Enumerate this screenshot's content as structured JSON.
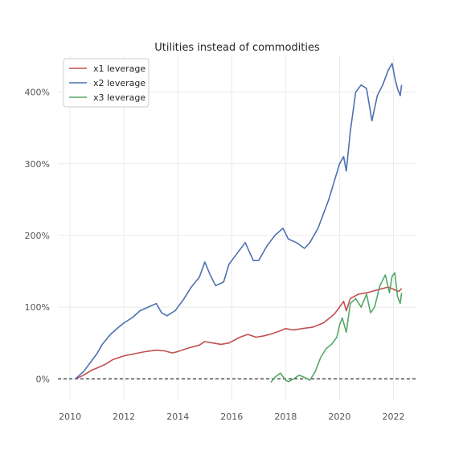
{
  "chart_data": {
    "type": "line",
    "title": "Utilities instead of commodities",
    "xlabel": "",
    "ylabel": "",
    "xlim": [
      2009.55,
      2022.85
    ],
    "ylim": [
      -30,
      450
    ],
    "x_ticks": [
      2010,
      2012,
      2014,
      2016,
      2018,
      2020,
      2022
    ],
    "x_tick_labels": [
      "2010",
      "2012",
      "2014",
      "2016",
      "2018",
      "2020",
      "2022"
    ],
    "y_ticks": [
      0,
      100,
      200,
      300,
      400
    ],
    "y_tick_labels": [
      "0%",
      "100%",
      "200%",
      "300%",
      "400%"
    ],
    "grid": true,
    "legend": "top-left",
    "reference_line": {
      "y": 0,
      "style": "dashed",
      "color": "#000000"
    },
    "series": [
      {
        "name": "x1 leverage",
        "color": "#c44e52",
        "x": [
          2010.2,
          2010.5,
          2010.8,
          2011.0,
          2011.3,
          2011.6,
          2012.0,
          2012.4,
          2012.8,
          2013.2,
          2013.5,
          2013.8,
          2014.0,
          2014.4,
          2014.8,
          2015.0,
          2015.3,
          2015.6,
          2015.9,
          2016.3,
          2016.6,
          2016.9,
          2017.2,
          2017.5,
          2017.8,
          2018.0,
          2018.3,
          2018.6,
          2019.0,
          2019.4,
          2019.8,
          2020.0,
          2020.15,
          2020.25,
          2020.4,
          2020.7,
          2021.0,
          2021.2,
          2021.5,
          2021.8,
          2022.0,
          2022.1,
          2022.2,
          2022.3
        ],
        "values": [
          0,
          5,
          12,
          15,
          20,
          27,
          32,
          35,
          38,
          40,
          39,
          36,
          38,
          43,
          47,
          52,
          50,
          48,
          50,
          58,
          62,
          58,
          60,
          63,
          67,
          70,
          68,
          70,
          72,
          78,
          90,
          100,
          108,
          95,
          112,
          118,
          120,
          122,
          125,
          128,
          125,
          123,
          122,
          126
        ]
      },
      {
        "name": "x2 leverage",
        "color": "#4c72b0",
        "x": [
          2010.2,
          2010.5,
          2010.8,
          2011.0,
          2011.2,
          2011.5,
          2011.8,
          2012.0,
          2012.3,
          2012.6,
          2012.9,
          2013.2,
          2013.4,
          2013.6,
          2013.9,
          2014.2,
          2014.5,
          2014.8,
          2015.0,
          2015.2,
          2015.4,
          2015.7,
          2015.9,
          2016.2,
          2016.5,
          2016.8,
          2017.0,
          2017.3,
          2017.6,
          2017.9,
          2018.1,
          2018.4,
          2018.7,
          2018.9,
          2019.2,
          2019.4,
          2019.6,
          2019.8,
          2020.0,
          2020.15,
          2020.25,
          2020.4,
          2020.6,
          2020.8,
          2021.0,
          2021.2,
          2021.4,
          2021.6,
          2021.8,
          2021.95,
          2022.05,
          2022.15,
          2022.25,
          2022.3
        ],
        "values": [
          0,
          10,
          25,
          35,
          48,
          62,
          72,
          78,
          85,
          95,
          100,
          105,
          92,
          88,
          95,
          110,
          128,
          142,
          163,
          145,
          130,
          135,
          160,
          175,
          190,
          165,
          165,
          185,
          200,
          210,
          195,
          190,
          182,
          190,
          210,
          230,
          250,
          275,
          300,
          310,
          290,
          345,
          400,
          410,
          405,
          360,
          395,
          410,
          430,
          440,
          420,
          405,
          395,
          410
        ]
      },
      {
        "name": "x3 leverage",
        "color": "#55a868",
        "x": [
          2017.45,
          2017.6,
          2017.8,
          2018.0,
          2018.1,
          2018.3,
          2018.5,
          2018.7,
          2018.9,
          2019.1,
          2019.3,
          2019.5,
          2019.7,
          2019.9,
          2020.0,
          2020.1,
          2020.25,
          2020.4,
          2020.6,
          2020.8,
          2021.0,
          2021.15,
          2021.3,
          2021.5,
          2021.7,
          2021.85,
          2021.95,
          2022.05,
          2022.15,
          2022.25,
          2022.3
        ],
        "values": [
          -5,
          2,
          8,
          -2,
          -4,
          0,
          5,
          2,
          -2,
          10,
          30,
          42,
          48,
          58,
          75,
          85,
          65,
          105,
          112,
          100,
          118,
          92,
          100,
          130,
          145,
          120,
          143,
          148,
          115,
          105,
          120
        ]
      }
    ]
  }
}
